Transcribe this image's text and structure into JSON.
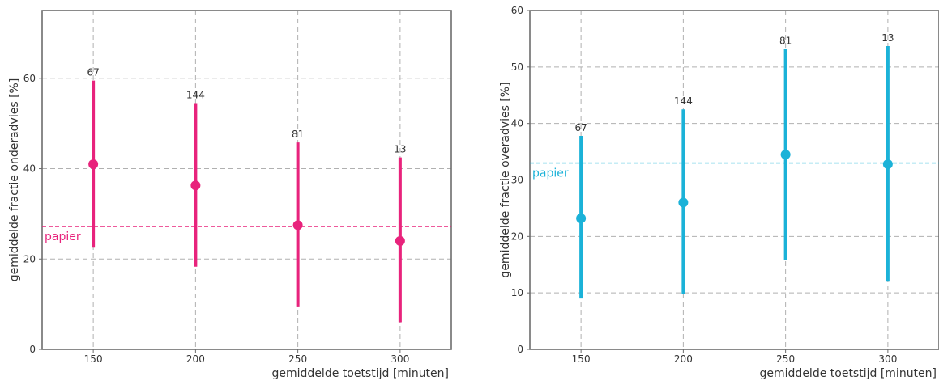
{
  "chart_data": [
    {
      "type": "scatter",
      "chart": "errorbar",
      "xlabel": "gemiddelde toetstijd [minuten]",
      "ylabel": "gemiddelde fractie onderadvies [%]",
      "x_ticks": [
        150,
        200,
        250,
        300
      ],
      "y_ticks": [
        0,
        20,
        40,
        60
      ],
      "xlim": [
        125,
        325
      ],
      "ylim": [
        0,
        75
      ],
      "grid": true,
      "color": "#e8237c",
      "points": [
        {
          "x": 150,
          "y": 41.0,
          "low": 22.5,
          "high": 59.5,
          "count": "67"
        },
        {
          "x": 200,
          "y": 36.3,
          "low": 18.3,
          "high": 54.5,
          "count": "144"
        },
        {
          "x": 250,
          "y": 27.5,
          "low": 9.5,
          "high": 45.8,
          "count": "81"
        },
        {
          "x": 300,
          "y": 24.0,
          "low": 6.0,
          "high": 42.5,
          "count": "13"
        }
      ],
      "reference": {
        "value": 27.2,
        "label": "papier"
      }
    },
    {
      "type": "scatter",
      "chart": "errorbar",
      "xlabel": "gemiddelde toetstijd [minuten]",
      "ylabel": "gemiddelde fractie overadvies [%]",
      "x_ticks": [
        150,
        200,
        250,
        300
      ],
      "y_ticks": [
        0,
        10,
        20,
        30,
        40,
        50,
        60
      ],
      "xlim": [
        125,
        325
      ],
      "ylim": [
        0,
        60
      ],
      "grid": true,
      "color": "#1bb2d8",
      "points": [
        {
          "x": 150,
          "y": 23.2,
          "low": 9.0,
          "high": 37.8,
          "count": "67"
        },
        {
          "x": 200,
          "y": 26.0,
          "low": 9.8,
          "high": 42.5,
          "count": "144"
        },
        {
          "x": 250,
          "y": 34.5,
          "low": 15.8,
          "high": 53.2,
          "count": "81"
        },
        {
          "x": 300,
          "y": 32.8,
          "low": 12.0,
          "high": 53.7,
          "count": "13"
        }
      ],
      "reference": {
        "value": 33.0,
        "label": "papier"
      }
    }
  ]
}
